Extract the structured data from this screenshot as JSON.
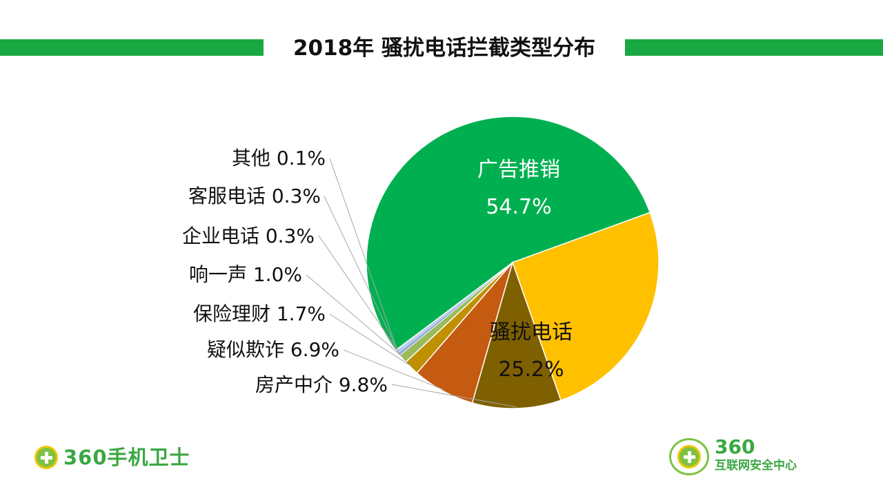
{
  "chart_data": {
    "type": "pie",
    "title": "2018年 骚扰电话拦截类型分布",
    "slices": [
      {
        "label": "广告推销",
        "value": 54.7,
        "display": "54.7%",
        "color": "#00b050"
      },
      {
        "label": "骚扰电话",
        "value": 25.2,
        "display": "25.2%",
        "color": "#ffc000"
      },
      {
        "label": "房产中介",
        "value": 9.8,
        "display": "9.8%",
        "color": "#7f6000"
      },
      {
        "label": "疑似欺诈",
        "value": 6.9,
        "display": "6.9%",
        "color": "#c55a11"
      },
      {
        "label": "保险理财",
        "value": 1.7,
        "display": "1.7%",
        "color": "#bf9000"
      },
      {
        "label": "响一声",
        "value": 1.0,
        "display": "1.0%",
        "color": "#9bbb59"
      },
      {
        "label": "企业电话",
        "value": 0.3,
        "display": "0.3%",
        "color": "#8ea9db"
      },
      {
        "label": "客服电话",
        "value": 0.3,
        "display": "0.3%",
        "color": "#b4c7e7"
      },
      {
        "label": "其他",
        "value": 0.1,
        "display": "0.1%",
        "color": "#d9e1f2"
      }
    ]
  },
  "footer": {
    "left_logo_text": "360手机卫士",
    "right_logo_number": "360",
    "right_logo_text": "互联网安全中心"
  },
  "colors": {
    "accent": "#1aa843",
    "logo_green": "#3aa741"
  }
}
